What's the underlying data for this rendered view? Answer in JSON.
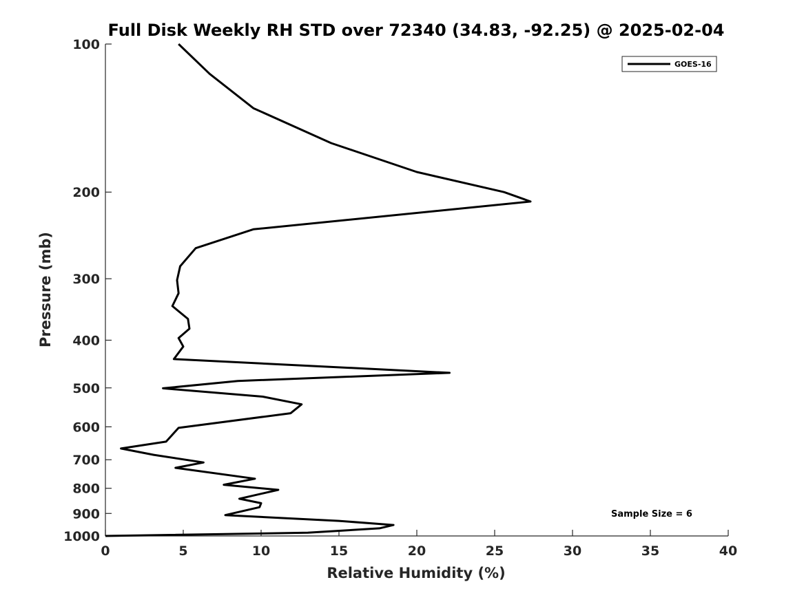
{
  "chart_data": {
    "type": "line",
    "title": "Full Disk Weekly RH STD over 72340 (34.83, -92.25) @ 2025-02-04",
    "xlabel": "Relative Humidity (%)",
    "ylabel": "Pressure (mb)",
    "xlim": [
      0,
      40
    ],
    "ylim": [
      1000,
      100
    ],
    "y_scale": "log",
    "y_reversed": true,
    "grid": false,
    "legend_placement": "top-right",
    "xticks": [
      0,
      5,
      10,
      15,
      20,
      25,
      30,
      35,
      40
    ],
    "xtick_labels": [
      "0",
      "5",
      "10",
      "15",
      "20",
      "25",
      "30",
      "35",
      "40"
    ],
    "yticks": [
      100,
      200,
      300,
      400,
      500,
      600,
      700,
      800,
      900,
      1000
    ],
    "ytick_labels": [
      "100",
      "200",
      "300",
      "400",
      "500",
      "600",
      "700",
      "800",
      "900",
      "1000"
    ],
    "annotation": "Sample Size = 6",
    "series": [
      {
        "name": "GOES-16",
        "color": "#000000",
        "points": [
          [
            4.7,
            100
          ],
          [
            6.7,
            115
          ],
          [
            9.5,
            135
          ],
          [
            14.5,
            159
          ],
          [
            20.0,
            182
          ],
          [
            25.6,
            200
          ],
          [
            27.3,
            209
          ],
          [
            9.5,
            238
          ],
          [
            5.8,
            260
          ],
          [
            4.8,
            283
          ],
          [
            4.6,
            302
          ],
          [
            4.7,
            321
          ],
          [
            4.3,
            341
          ],
          [
            5.3,
            362
          ],
          [
            5.4,
            379
          ],
          [
            4.7,
            396
          ],
          [
            5.0,
            412
          ],
          [
            4.4,
            437
          ],
          [
            22.1,
            466
          ],
          [
            8.5,
            484
          ],
          [
            3.7,
            501
          ],
          [
            10.1,
            521
          ],
          [
            12.6,
            540
          ],
          [
            11.9,
            563
          ],
          [
            4.7,
            603
          ],
          [
            3.9,
            643
          ],
          [
            1.0,
            664
          ],
          [
            3.1,
            684
          ],
          [
            6.3,
            709
          ],
          [
            4.5,
            727
          ],
          [
            9.6,
            765
          ],
          [
            7.6,
            787
          ],
          [
            11.1,
            806
          ],
          [
            8.6,
            840
          ],
          [
            10.0,
            858
          ],
          [
            9.9,
            874
          ],
          [
            7.7,
            907
          ],
          [
            15.0,
            932
          ],
          [
            18.5,
            950
          ],
          [
            17.6,
            965
          ],
          [
            13.0,
            985
          ],
          [
            0.0,
            1000
          ]
        ]
      }
    ]
  }
}
